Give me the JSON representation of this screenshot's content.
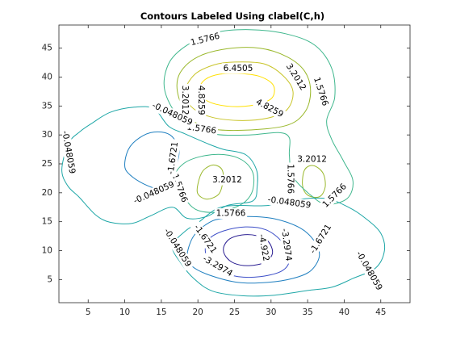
{
  "chart_data": {
    "type": "contour",
    "title": "Contours Labeled Using clabel(C,h)",
    "xlabel": "",
    "ylabel": "",
    "xlim": [
      1,
      49
    ],
    "ylim": [
      1,
      49
    ],
    "x_ticks": [
      5,
      10,
      15,
      20,
      25,
      30,
      35,
      40,
      45
    ],
    "y_ticks": [
      5,
      10,
      15,
      20,
      25,
      30,
      35,
      40,
      45
    ],
    "grid": false,
    "levels": [
      {
        "value": 6.4505,
        "color": "#ffe000",
        "paths": [
          [
            [
              20.2,
              38
            ],
            [
              21,
              39.6
            ],
            [
              23,
              40.5
            ],
            [
              26,
              40.6
            ],
            [
              28.5,
              40.1
            ],
            [
              30.3,
              38.6
            ],
            [
              30.2,
              36.5
            ],
            [
              28.5,
              35.4
            ],
            [
              25.5,
              34.9
            ],
            [
              22.5,
              35.3
            ],
            [
              20.7,
              36.4
            ],
            [
              20.2,
              38
            ]
          ]
        ],
        "labels": [
          {
            "text": "6.4505",
            "x": 25.5,
            "y": 41.5,
            "angle": 0
          }
        ]
      },
      {
        "value": 4.8259,
        "color": "#c8c428",
        "paths": [
          [
            [
              18.2,
              37.5
            ],
            [
              19.6,
              40.5
            ],
            [
              22.2,
              42.1
            ],
            [
              25,
              42.6
            ],
            [
              29,
              42.3
            ],
            [
              31.6,
              40.3
            ],
            [
              33,
              37.5
            ],
            [
              32.2,
              34.4
            ],
            [
              29.5,
              32.9
            ],
            [
              25.5,
              32.5
            ],
            [
              21.5,
              33.2
            ],
            [
              19,
              35
            ],
            [
              18.2,
              37.5
            ]
          ]
        ],
        "labels": [
          {
            "text": "4.8259",
            "x": 20.4,
            "y": 36,
            "angle": -90
          },
          {
            "text": "4.8259",
            "x": 29.8,
            "y": 34.6,
            "angle": -28
          }
        ]
      },
      {
        "value": 3.2012,
        "color": "#9ab82c",
        "paths": [
          [
            [
              17.2,
              37.5
            ],
            [
              17.6,
              40.8
            ],
            [
              20,
              43.5
            ],
            [
              24,
              44.9
            ],
            [
              28.5,
              45
            ],
            [
              32.2,
              43.5
            ],
            [
              34.6,
              41
            ],
            [
              35.4,
              37.5
            ],
            [
              34.6,
              33.9
            ],
            [
              32,
              31.6
            ],
            [
              26,
              30.8
            ],
            [
              21.4,
              31.2
            ],
            [
              18.6,
              33.3
            ],
            [
              17.2,
              37.5
            ]
          ],
          [
            [
              34.3,
              21.3
            ],
            [
              35,
              19.6
            ],
            [
              36.6,
              19.3
            ],
            [
              37.4,
              21
            ],
            [
              37.1,
              23.4
            ],
            [
              35.8,
              24.7
            ],
            [
              34.6,
              24
            ],
            [
              34.3,
              21.3
            ]
          ],
          [
            [
              20,
              19.8
            ],
            [
              21.2,
              18.9
            ],
            [
              22.8,
              19.7
            ],
            [
              23.4,
              21.8
            ],
            [
              23.3,
              24
            ],
            [
              22.1,
              24.8
            ],
            [
              20.7,
              23.8
            ],
            [
              20,
              21.5
            ],
            [
              20,
              19.8
            ]
          ]
        ],
        "labels": [
          {
            "text": "3.2012",
            "x": 18.2,
            "y": 36,
            "angle": -90
          },
          {
            "text": "3.2012",
            "x": 33.4,
            "y": 40,
            "angle": -58
          },
          {
            "text": "3.2012",
            "x": 35.6,
            "y": 25.8,
            "angle": 0
          },
          {
            "text": "3.2012",
            "x": 24,
            "y": 22.2,
            "angle": 0
          }
        ]
      },
      {
        "value": 1.5766,
        "color": "#3fb78d",
        "paths": [
          [
            [
              15.5,
              37.5
            ],
            [
              16,
              42.3
            ],
            [
              18.5,
              45.5
            ],
            [
              22.5,
              47.7
            ],
            [
              27,
              48.2
            ],
            [
              32,
              47.5
            ],
            [
              36,
              45.5
            ],
            [
              38.3,
              41.5
            ],
            [
              38.7,
              36.5
            ],
            [
              37.6,
              32.5
            ],
            [
              38.3,
              29.2
            ],
            [
              39.9,
              25.5
            ],
            [
              41.2,
              22
            ],
            [
              40.4,
              19
            ],
            [
              37.6,
              18
            ],
            [
              35.5,
              19.5
            ],
            [
              33,
              22.8
            ],
            [
              32.5,
              26.5
            ],
            [
              32.5,
              29.5
            ],
            [
              31,
              30.4
            ],
            [
              27,
              30
            ],
            [
              22,
              30.2
            ],
            [
              18,
              32.2
            ],
            [
              15.5,
              37.5
            ]
          ],
          [
            [
              16.8,
              22.5
            ],
            [
              18.1,
              19.3
            ],
            [
              19.6,
              17.2
            ],
            [
              21.9,
              16.6
            ],
            [
              24.5,
              17.2
            ],
            [
              26.5,
              18.5
            ],
            [
              27.5,
              20.5
            ],
            [
              27.5,
              23.5
            ],
            [
              26,
              25.7
            ],
            [
              23.5,
              26.6
            ],
            [
              20.5,
              26.3
            ],
            [
              18,
              25
            ],
            [
              16.8,
              22.5
            ]
          ]
        ],
        "labels": [
          {
            "text": "1.5766",
            "x": 21,
            "y": 46.5,
            "angle": 14
          },
          {
            "text": "1.5766",
            "x": 36.8,
            "y": 37.5,
            "angle": -72
          },
          {
            "text": "1.5766",
            "x": 20.5,
            "y": 31,
            "angle": -8
          },
          {
            "text": "1.5766",
            "x": 32.6,
            "y": 22.4,
            "angle": -90
          },
          {
            "text": "1.5766",
            "x": 38.7,
            "y": 19.5,
            "angle": 45
          },
          {
            "text": "1.5766",
            "x": 17.5,
            "y": 20.8,
            "angle": -70
          },
          {
            "text": "1.5766",
            "x": 24.5,
            "y": 16.4,
            "angle": 0
          }
        ]
      },
      {
        "value": -0.048059,
        "color": "#1fa7a7",
        "paths": [
          [
            [
              1.4,
              24
            ],
            [
              2.3,
              28.5
            ],
            [
              3.8,
              30.5
            ],
            [
              5.5,
              32
            ],
            [
              8,
              33.9
            ],
            [
              11.3,
              34.8
            ],
            [
              14,
              34.5
            ],
            [
              16,
              31.5
            ],
            [
              18.2,
              30.2
            ],
            [
              21.5,
              28.4
            ],
            [
              23.5,
              27.5
            ],
            [
              26.5,
              26.6
            ],
            [
              28,
              24
            ],
            [
              28.1,
              21
            ],
            [
              27.5,
              18.6
            ],
            [
              24,
              17.8
            ],
            [
              21.2,
              15.9
            ],
            [
              18.5,
              15.6
            ],
            [
              16.5,
              17.5
            ],
            [
              13.5,
              16
            ],
            [
              11,
              14.7
            ],
            [
              8,
              14.9
            ],
            [
              6,
              16.2
            ],
            [
              3.8,
              19.2
            ],
            [
              2.2,
              21.2
            ],
            [
              1.4,
              24
            ]
          ],
          [
            [
              16.5,
              10.8
            ],
            [
              17.7,
              7.8
            ],
            [
              19.5,
              5.1
            ],
            [
              22,
              3
            ],
            [
              26,
              2.2
            ],
            [
              30.5,
              2.3
            ],
            [
              35,
              3.1
            ],
            [
              38.4,
              3.7
            ],
            [
              41.2,
              5.2
            ],
            [
              44.3,
              7
            ],
            [
              45.5,
              10
            ],
            [
              45,
              13
            ],
            [
              43,
              15.5
            ],
            [
              40.6,
              17.5
            ],
            [
              37.5,
              19
            ],
            [
              33.5,
              18.8
            ],
            [
              29.5,
              17.8
            ],
            [
              25,
              17.8
            ],
            [
              22.5,
              17.2
            ],
            [
              20,
              14.8
            ],
            [
              18.3,
              13.4
            ],
            [
              16.5,
              10.8
            ]
          ]
        ],
        "labels": [
          {
            "text": "-0.048059",
            "x": 2.3,
            "y": 27,
            "angle": -80
          },
          {
            "text": "-0.048059",
            "x": 16.5,
            "y": 33.6,
            "angle": -25
          },
          {
            "text": "-0.048059",
            "x": 14,
            "y": 20,
            "angle": 24
          },
          {
            "text": "-0.048059",
            "x": 32.5,
            "y": 18.3,
            "angle": -8
          },
          {
            "text": "-0.048059",
            "x": 17.2,
            "y": 10.5,
            "angle": -58
          },
          {
            "text": "-0.048059",
            "x": 43.4,
            "y": 6.5,
            "angle": -60
          }
        ]
      },
      {
        "value": -1.6721,
        "color": "#1f7fc0",
        "paths": [
          [
            [
              10,
              24.6
            ],
            [
              10.5,
              27.5
            ],
            [
              12,
              29.5
            ],
            [
              14,
              30.5
            ],
            [
              16.2,
              30
            ],
            [
              17.4,
              27.5
            ],
            [
              17,
              24.5
            ],
            [
              16,
              21.5
            ],
            [
              14.5,
              20.7
            ],
            [
              12.5,
              21.6
            ],
            [
              10.8,
              23
            ],
            [
              10,
              24.6
            ]
          ],
          [
            [
              18.5,
              9
            ],
            [
              19.4,
              12.5
            ],
            [
              21.6,
              14.9
            ],
            [
              23.6,
              15.6
            ],
            [
              27,
              15.9
            ],
            [
              30.5,
              15.5
            ],
            [
              34,
              13.9
            ],
            [
              36,
              11.5
            ],
            [
              36.6,
              9
            ],
            [
              35.4,
              6.5
            ],
            [
              33,
              5.2
            ],
            [
              29.5,
              4.5
            ],
            [
              25.5,
              4.5
            ],
            [
              21.5,
              5.8
            ],
            [
              19.2,
              7.3
            ],
            [
              18.5,
              9
            ]
          ]
        ],
        "labels": [
          {
            "text": "-1.6721",
            "x": 16.6,
            "y": 26,
            "angle": 82
          },
          {
            "text": "-1.6721",
            "x": 21,
            "y": 12,
            "angle": -55
          },
          {
            "text": "-1.6721",
            "x": 36.8,
            "y": 12,
            "angle": 58
          }
        ]
      },
      {
        "value": -3.2974,
        "color": "#3d4fc8",
        "paths": [
          [
            [
              21,
              10
            ],
            [
              21.5,
              12
            ],
            [
              23.5,
              13.4
            ],
            [
              26.5,
              14.1
            ],
            [
              29.3,
              13.6
            ],
            [
              31.5,
              11.5
            ],
            [
              32.5,
              8.5
            ],
            [
              31.5,
              6.5
            ],
            [
              28.5,
              5.5
            ],
            [
              25.5,
              5.5
            ],
            [
              23,
              6.5
            ],
            [
              21.6,
              8
            ],
            [
              21,
              10
            ]
          ]
        ],
        "labels": [
          {
            "text": "-3.2974",
            "x": 22.7,
            "y": 7.3,
            "angle": -30
          },
          {
            "text": "-3.2974",
            "x": 32.1,
            "y": 11,
            "angle": -82
          }
        ]
      },
      {
        "value": -4.922,
        "color": "#2a1e92",
        "paths": [
          [
            [
              23.5,
              10.5
            ],
            [
              24.3,
              12
            ],
            [
              26,
              12.7
            ],
            [
              28,
              12.6
            ],
            [
              29.6,
              11.6
            ],
            [
              30.2,
              9.6
            ],
            [
              29.2,
              8
            ],
            [
              27,
              7.4
            ],
            [
              25,
              7.8
            ],
            [
              23.8,
              9
            ],
            [
              23.5,
              10.5
            ]
          ]
        ],
        "labels": [
          {
            "text": "-4.922",
            "x": 29,
            "y": 10.5,
            "angle": -80
          }
        ]
      }
    ]
  }
}
